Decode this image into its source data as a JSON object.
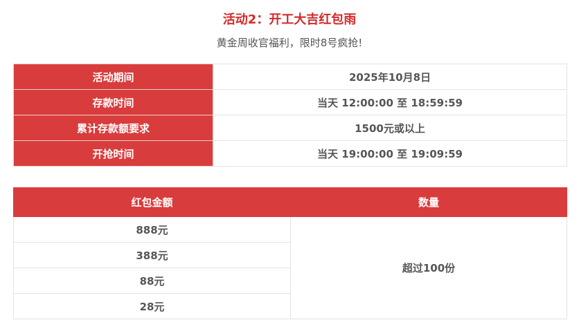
{
  "title": "活动2：开工大吉红包雨",
  "subtitle": "黄金周收官福利，限时8号疯抢!",
  "info_table": [
    {
      "label": "活动期间",
      "value": "2025年10月8日"
    },
    {
      "label": "存款时间",
      "value": "当天 12:00:00 至 18:59:59"
    },
    {
      "label": "累计存款额要求",
      "value": "1500元或以上"
    },
    {
      "label": "开抢时间",
      "value": "当天 19:00:00 至 19:09:59"
    }
  ],
  "prize_table": {
    "headers": [
      "红包金额",
      "数量"
    ],
    "amounts": [
      "888元",
      "388元",
      "88元",
      "28元"
    ],
    "quantity": "超过100份"
  },
  "colors": {
    "accent": "#d93c3c",
    "title": "#d42a2a",
    "text": "#555555"
  }
}
